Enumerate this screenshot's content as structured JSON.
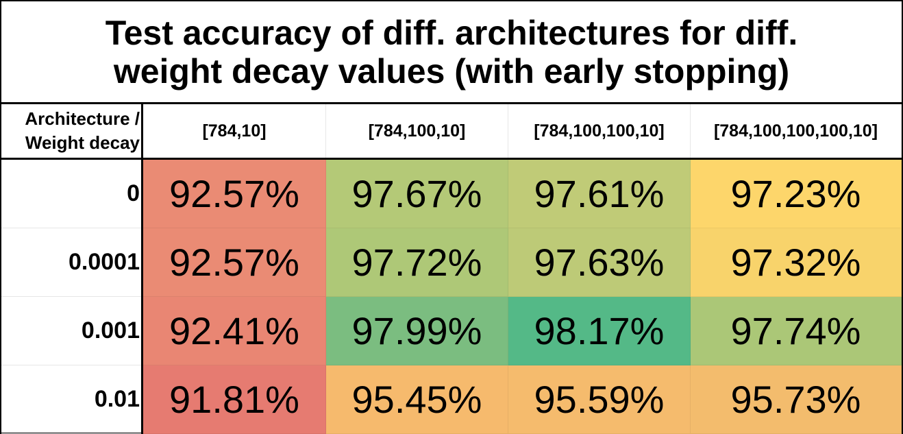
{
  "chart_data": {
    "type": "heatmap",
    "title": "Test accuracy of diff. architectures for diff. weight decay values (with early stopping)",
    "title_lines": [
      "Test accuracy of diff. architectures for diff.",
      "weight decay values (with early stopping)"
    ],
    "corner_label_lines": [
      "Architecture /",
      "Weight decay"
    ],
    "columns": [
      "[784,10]",
      "[784,100,10]",
      "[784,100,100,10]",
      "[784,100,100,100,10]"
    ],
    "rows": [
      "0",
      "0.0001",
      "0.001",
      "0.01"
    ],
    "values": [
      [
        92.57,
        97.67,
        97.61,
        97.23
      ],
      [
        92.57,
        97.72,
        97.63,
        97.32
      ],
      [
        92.41,
        97.99,
        98.17,
        97.74
      ],
      [
        91.81,
        95.45,
        95.59,
        95.73
      ]
    ],
    "value_labels": [
      [
        "92.57%",
        "97.67%",
        "97.61%",
        "97.23%"
      ],
      [
        "92.57%",
        "97.72%",
        "97.63%",
        "97.32%"
      ],
      [
        "92.41%",
        "97.99%",
        "98.17%",
        "97.74%"
      ],
      [
        "91.81%",
        "95.45%",
        "95.59%",
        "95.73%"
      ]
    ],
    "cell_colors": [
      [
        "#ea8b74",
        "#b4c977",
        "#c0cb77",
        "#fdd66b"
      ],
      [
        "#ea8b74",
        "#aec877",
        "#bdca77",
        "#f8d36b"
      ],
      [
        "#e98673",
        "#7bbd80",
        "#54b987",
        "#abc777"
      ],
      [
        "#e67b71",
        "#f6ba6d",
        "#f5bb6d",
        "#f3bc6d"
      ]
    ]
  }
}
